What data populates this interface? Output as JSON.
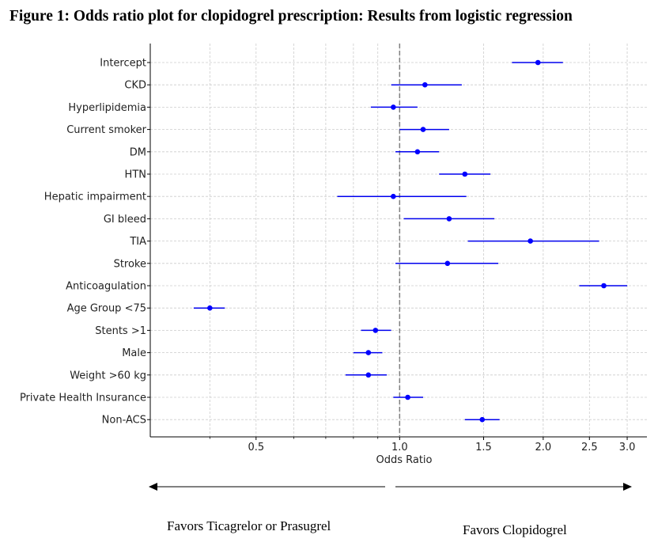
{
  "figure": {
    "title": "Figure 1: Odds ratio plot for clopidogrel prescription: Results from logistic regression"
  },
  "colors": {
    "point": "#0000ff",
    "ci": "#0000ee",
    "reference": "#808080",
    "grid": "#cccccc",
    "axis": "#000000"
  },
  "chart_data": {
    "type": "scatter",
    "subtype": "forest-plot",
    "x_scale": "log",
    "xlabel": "Odds Ratio",
    "xlim": [
      0.3,
      3.3
    ],
    "xticks": [
      0.5,
      1.0,
      1.5,
      2.0,
      2.5,
      3.0
    ],
    "xtick_labels": [
      "0.5",
      "1.0",
      "1.5",
      "2.0",
      "2.5",
      "3.0"
    ],
    "reference_line": 1.0,
    "grid": true,
    "rows": [
      {
        "label": "Intercept",
        "or": 1.95,
        "lo": 1.72,
        "hi": 2.2
      },
      {
        "label": "CKD",
        "or": 1.13,
        "lo": 0.96,
        "hi": 1.35
      },
      {
        "label": "Hyperlipidemia",
        "or": 0.97,
        "lo": 0.87,
        "hi": 1.09
      },
      {
        "label": "Current smoker",
        "or": 1.12,
        "lo": 1.0,
        "hi": 1.27
      },
      {
        "label": "DM",
        "or": 1.09,
        "lo": 0.98,
        "hi": 1.21
      },
      {
        "label": "HTN",
        "or": 1.37,
        "lo": 1.21,
        "hi": 1.55
      },
      {
        "label": "Hepatic impairment",
        "or": 0.97,
        "lo": 0.74,
        "hi": 1.38
      },
      {
        "label": "GI bleed",
        "or": 1.27,
        "lo": 1.02,
        "hi": 1.58
      },
      {
        "label": "TIA",
        "or": 1.88,
        "lo": 1.39,
        "hi": 2.62
      },
      {
        "label": "Stroke",
        "or": 1.26,
        "lo": 0.98,
        "hi": 1.61
      },
      {
        "label": "Anticoagulation",
        "or": 2.68,
        "lo": 2.38,
        "hi": 3.0
      },
      {
        "label": "Age Group <75",
        "or": 0.4,
        "lo": 0.37,
        "hi": 0.43
      },
      {
        "label": "Stents >1",
        "or": 0.89,
        "lo": 0.83,
        "hi": 0.96
      },
      {
        "label": "Male",
        "or": 0.86,
        "lo": 0.8,
        "hi": 0.92
      },
      {
        "label": "Weight >60 kg",
        "or": 0.86,
        "lo": 0.77,
        "hi": 0.94
      },
      {
        "label": "Private Health Insurance",
        "or": 1.04,
        "lo": 0.97,
        "hi": 1.12
      },
      {
        "label": "Non-ACS",
        "or": 1.49,
        "lo": 1.37,
        "hi": 1.62
      }
    ]
  },
  "annotations": {
    "favors_left": "Favors Ticagrelor or Prasugrel",
    "favors_right": "Favors Clopidogrel"
  }
}
